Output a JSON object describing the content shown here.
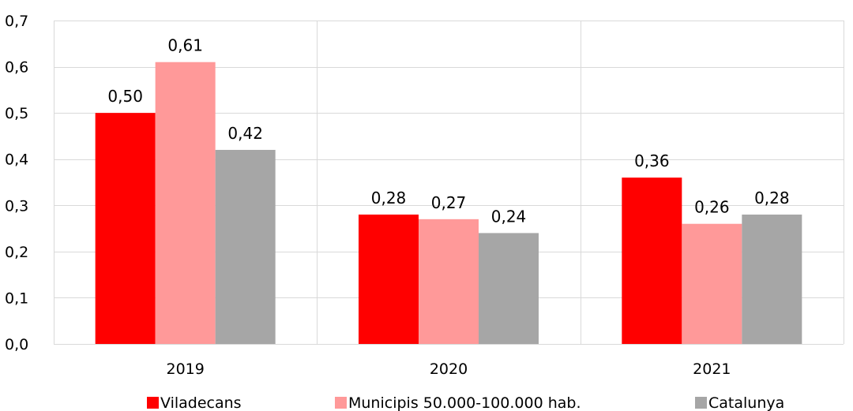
{
  "chart_data": {
    "type": "bar",
    "categories": [
      "2019",
      "2020",
      "2021"
    ],
    "series": [
      {
        "name": "Viladecans",
        "values": [
          0.5,
          0.28,
          0.36
        ],
        "labels": [
          "0,50",
          "0,28",
          "0,36"
        ],
        "color": "#FF0000"
      },
      {
        "name": "Municipis 50.000-100.000 hab.",
        "values": [
          0.61,
          0.27,
          0.26
        ],
        "labels": [
          "0,61",
          "0,27",
          "0,26"
        ],
        "color": "#FF9999"
      },
      {
        "name": "Catalunya",
        "values": [
          0.42,
          0.24,
          0.28
        ],
        "labels": [
          "0,42",
          "0,24",
          "0,28"
        ],
        "color": "#A6A6A6"
      }
    ],
    "ylim": [
      0,
      0.7
    ],
    "yticks": [
      0,
      0.1,
      0.2,
      0.3,
      0.4,
      0.5,
      0.6,
      0.7
    ],
    "ytick_labels": [
      "0,0",
      "0,1",
      "0,2",
      "0,3",
      "0,4",
      "0,5",
      "0,6",
      "0,7"
    ],
    "title": "",
    "xlabel": "",
    "ylabel": "",
    "grid": true,
    "legend_position": "bottom"
  }
}
